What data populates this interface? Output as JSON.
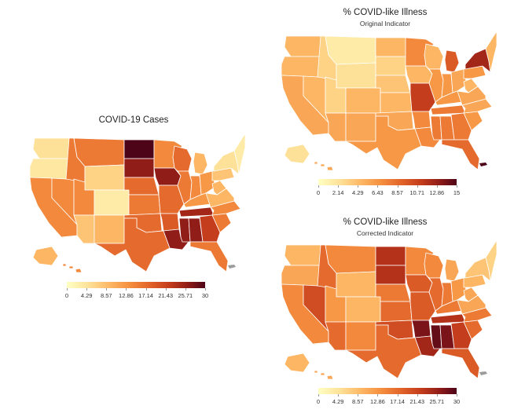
{
  "colors": {
    "scale": [
      "#ffffc4",
      "#fee39a",
      "#fdba68",
      "#f5903f",
      "#e2632a",
      "#c13a1b",
      "#8e1b18",
      "#4d0418"
    ],
    "territory": "#9b9b9b",
    "state_border": "#ffffff"
  },
  "maps": [
    {
      "id": "covid-cases",
      "title": "COVID-19 Cases",
      "subtitle": "",
      "legend": {
        "min": 0,
        "max": 30,
        "ticks": [
          "0",
          "4.29",
          "8.57",
          "12.86",
          "17.14",
          "21.43",
          "25.71",
          "30"
        ]
      },
      "regions": {
        "WA": 0.15,
        "OR": 0.12,
        "CA": 0.45,
        "NV": 0.45,
        "ID": 0.5,
        "MT": 0.5,
        "WY": 0.2,
        "UT": 0.45,
        "AZ": 0.25,
        "CO": 0.1,
        "NM": 0.3,
        "ND": 1.0,
        "SD": 0.85,
        "NE": 0.55,
        "KS": 0.5,
        "OK": 0.55,
        "TX": 0.55,
        "MN": 0.45,
        "IA": 0.85,
        "MO": 0.55,
        "AR": 0.6,
        "LA": 0.85,
        "WI": 0.55,
        "IL": 0.5,
        "MI": 0.3,
        "IN": 0.45,
        "OH": 0.4,
        "KY": 0.4,
        "TN": 0.8,
        "MS": 0.85,
        "AL": 0.85,
        "GA": 0.7,
        "FL": 0.5,
        "SC": 0.5,
        "NC": 0.45,
        "VA": 0.3,
        "WV": 0.3,
        "PA": 0.25,
        "NY": 0.15,
        "NE_REGION": 0.1,
        "AK": 0.3,
        "HI": 0.45
      }
    },
    {
      "id": "cli-original",
      "title": "% COVID-like Illness",
      "subtitle": "Original Indicator",
      "legend": {
        "min": 0,
        "max": 15,
        "ticks": [
          "0",
          "2.14",
          "4.29",
          "6.43",
          "8.57",
          "10.71",
          "12.86",
          "15"
        ]
      },
      "regions": {
        "WA": 0.3,
        "OR": 0.3,
        "CA": 0.35,
        "NV": 0.3,
        "ID": 0.2,
        "MT": 0.1,
        "WY": 0.15,
        "UT": 0.2,
        "AZ": 0.35,
        "CO": 0.3,
        "NM": 0.35,
        "ND": 0.3,
        "SD": 0.2,
        "NE": 0.25,
        "KS": 0.3,
        "OK": 0.35,
        "TX": 0.4,
        "MN": 0.45,
        "IA": 0.3,
        "MO": 0.7,
        "AR": 0.45,
        "LA": 0.45,
        "WI": 0.3,
        "IL": 0.4,
        "MI": 0.6,
        "IN": 0.4,
        "OH": 0.35,
        "KY": 0.4,
        "TN": 0.5,
        "MS": 0.5,
        "AL": 0.5,
        "GA": 0.5,
        "FL": 0.55,
        "SC": 0.4,
        "NC": 0.35,
        "VA": 0.35,
        "WV": 0.3,
        "PA": 0.4,
        "NY": 0.8,
        "NE_REGION": 0.3,
        "AK": 0.15,
        "HI": 0.35,
        "PR": 1.0
      }
    },
    {
      "id": "cli-corrected",
      "title": "% COVID-like Illness",
      "subtitle": "Corrected Indicator",
      "legend": {
        "min": 0,
        "max": 30,
        "ticks": [
          "0",
          "4.29",
          "8.57",
          "12.86",
          "17.14",
          "21.43",
          "25.71",
          "30"
        ]
      },
      "regions": {
        "WA": 0.3,
        "OR": 0.35,
        "CA": 0.45,
        "NV": 0.65,
        "ID": 0.55,
        "MT": 0.45,
        "WY": 0.3,
        "UT": 0.4,
        "AZ": 0.55,
        "CO": 0.3,
        "NM": 0.45,
        "ND": 0.75,
        "SD": 0.75,
        "NE": 0.5,
        "KS": 0.55,
        "OK": 0.65,
        "TX": 0.55,
        "MN": 0.45,
        "IA": 0.6,
        "MO": 0.6,
        "AR": 0.9,
        "LA": 0.8,
        "WI": 0.45,
        "IL": 0.55,
        "MI": 0.35,
        "IN": 0.5,
        "OH": 0.4,
        "KY": 0.5,
        "TN": 0.75,
        "MS": 0.95,
        "AL": 0.9,
        "GA": 0.7,
        "FL": 0.6,
        "SC": 0.55,
        "NC": 0.5,
        "VA": 0.35,
        "WV": 0.35,
        "PA": 0.3,
        "NY": 0.25,
        "NE_REGION": 0.2,
        "AK": 0.3,
        "HI": 0.35
      }
    }
  ]
}
